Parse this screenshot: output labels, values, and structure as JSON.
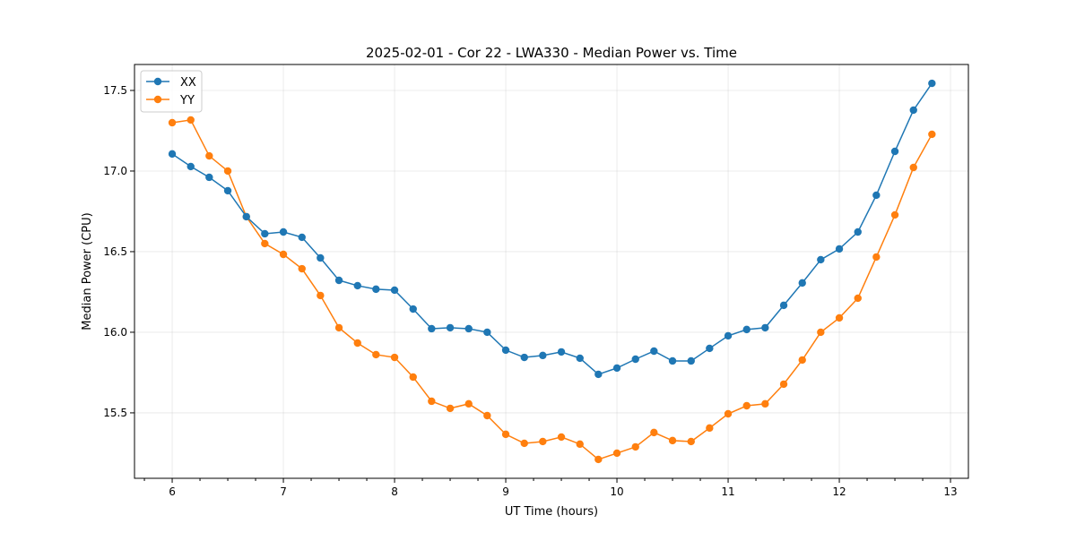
{
  "chart_data": {
    "type": "line",
    "title": "2025-02-01 - Cor 22 - LWA330 - Median Power vs. Time",
    "xlabel": "UT Time (hours)",
    "ylabel": "Median Power (CPU)",
    "xlim": [
      5.661,
      13.161
    ],
    "ylim": [
      15.094,
      17.661
    ],
    "xticks": [
      6,
      7,
      8,
      9,
      10,
      11,
      12,
      13
    ],
    "xtick_labels": [
      "6",
      "7",
      "8",
      "9",
      "10",
      "11",
      "12",
      "13"
    ],
    "yticks": [
      15.5,
      16.0,
      16.5,
      17.0,
      17.5
    ],
    "ytick_labels": [
      "15.5",
      "16.0",
      "16.5",
      "17.0",
      "17.5"
    ],
    "grid": true,
    "legend_position": "top-left",
    "x": [
      6.0,
      6.167,
      6.333,
      6.5,
      6.667,
      6.833,
      7.0,
      7.167,
      7.333,
      7.5,
      7.667,
      7.833,
      8.0,
      8.167,
      8.333,
      8.5,
      8.667,
      8.833,
      9.0,
      9.167,
      9.333,
      9.5,
      9.667,
      9.833,
      10.0,
      10.167,
      10.333,
      10.5,
      10.667,
      10.833,
      11.0,
      11.167,
      11.333,
      11.5,
      11.667,
      11.833,
      12.0,
      12.167,
      12.333,
      12.5,
      12.667,
      12.833
    ],
    "series": [
      {
        "name": "XX",
        "color": "#1f77b4",
        "values": [
          17.106,
          17.028,
          16.961,
          16.878,
          16.717,
          16.611,
          16.622,
          16.589,
          16.461,
          16.322,
          16.289,
          16.267,
          16.261,
          16.144,
          16.022,
          16.028,
          16.022,
          16.0,
          15.889,
          15.844,
          15.856,
          15.878,
          15.839,
          15.739,
          15.778,
          15.833,
          15.883,
          15.822,
          15.822,
          15.9,
          15.978,
          16.017,
          16.028,
          16.167,
          16.306,
          16.45,
          16.517,
          16.622,
          16.85,
          17.122,
          17.378,
          17.544
        ]
      },
      {
        "name": "YY",
        "color": "#ff7f0e",
        "values": [
          17.3,
          17.317,
          17.094,
          17.0,
          16.717,
          16.55,
          16.483,
          16.394,
          16.228,
          16.028,
          15.933,
          15.861,
          15.844,
          15.722,
          15.572,
          15.528,
          15.556,
          15.483,
          15.367,
          15.311,
          15.322,
          15.35,
          15.306,
          15.211,
          15.25,
          15.289,
          15.378,
          15.328,
          15.322,
          15.406,
          15.494,
          15.544,
          15.556,
          15.678,
          15.828,
          16.0,
          16.089,
          16.211,
          16.467,
          16.728,
          17.022,
          17.228
        ]
      }
    ]
  }
}
